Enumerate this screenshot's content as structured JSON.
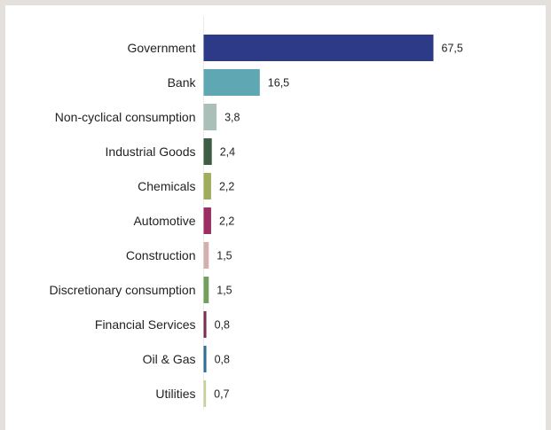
{
  "chart_data": {
    "type": "bar",
    "orientation": "horizontal",
    "title": "",
    "xlabel": "",
    "ylabel": "",
    "categories": [
      "Government",
      "Bank",
      "Non-cyclical consumption",
      "Industrial Goods",
      "Chemicals",
      "Automotive",
      "Construction",
      "Discretionary consumption",
      "Financial Services",
      "Oil & Gas",
      "Utilities"
    ],
    "values": [
      67.5,
      16.5,
      3.8,
      2.4,
      2.2,
      2.2,
      1.5,
      1.5,
      0.8,
      0.8,
      0.7
    ],
    "value_labels": [
      "67,5",
      "16,5",
      "3,8",
      "2,4",
      "2,2",
      "2,2",
      "1,5",
      "1,5",
      "0,8",
      "0,8",
      "0,7"
    ],
    "colors": [
      "#2d3a87",
      "#5fa8b3",
      "#a9bfb8",
      "#3d5e45",
      "#9fad5c",
      "#9b2f63",
      "#d4b0ae",
      "#72a05c",
      "#7a2d55",
      "#2f6e96",
      "#c8cf9a"
    ],
    "xlim": [
      0,
      67.5
    ],
    "grid": false,
    "legend": "none"
  }
}
